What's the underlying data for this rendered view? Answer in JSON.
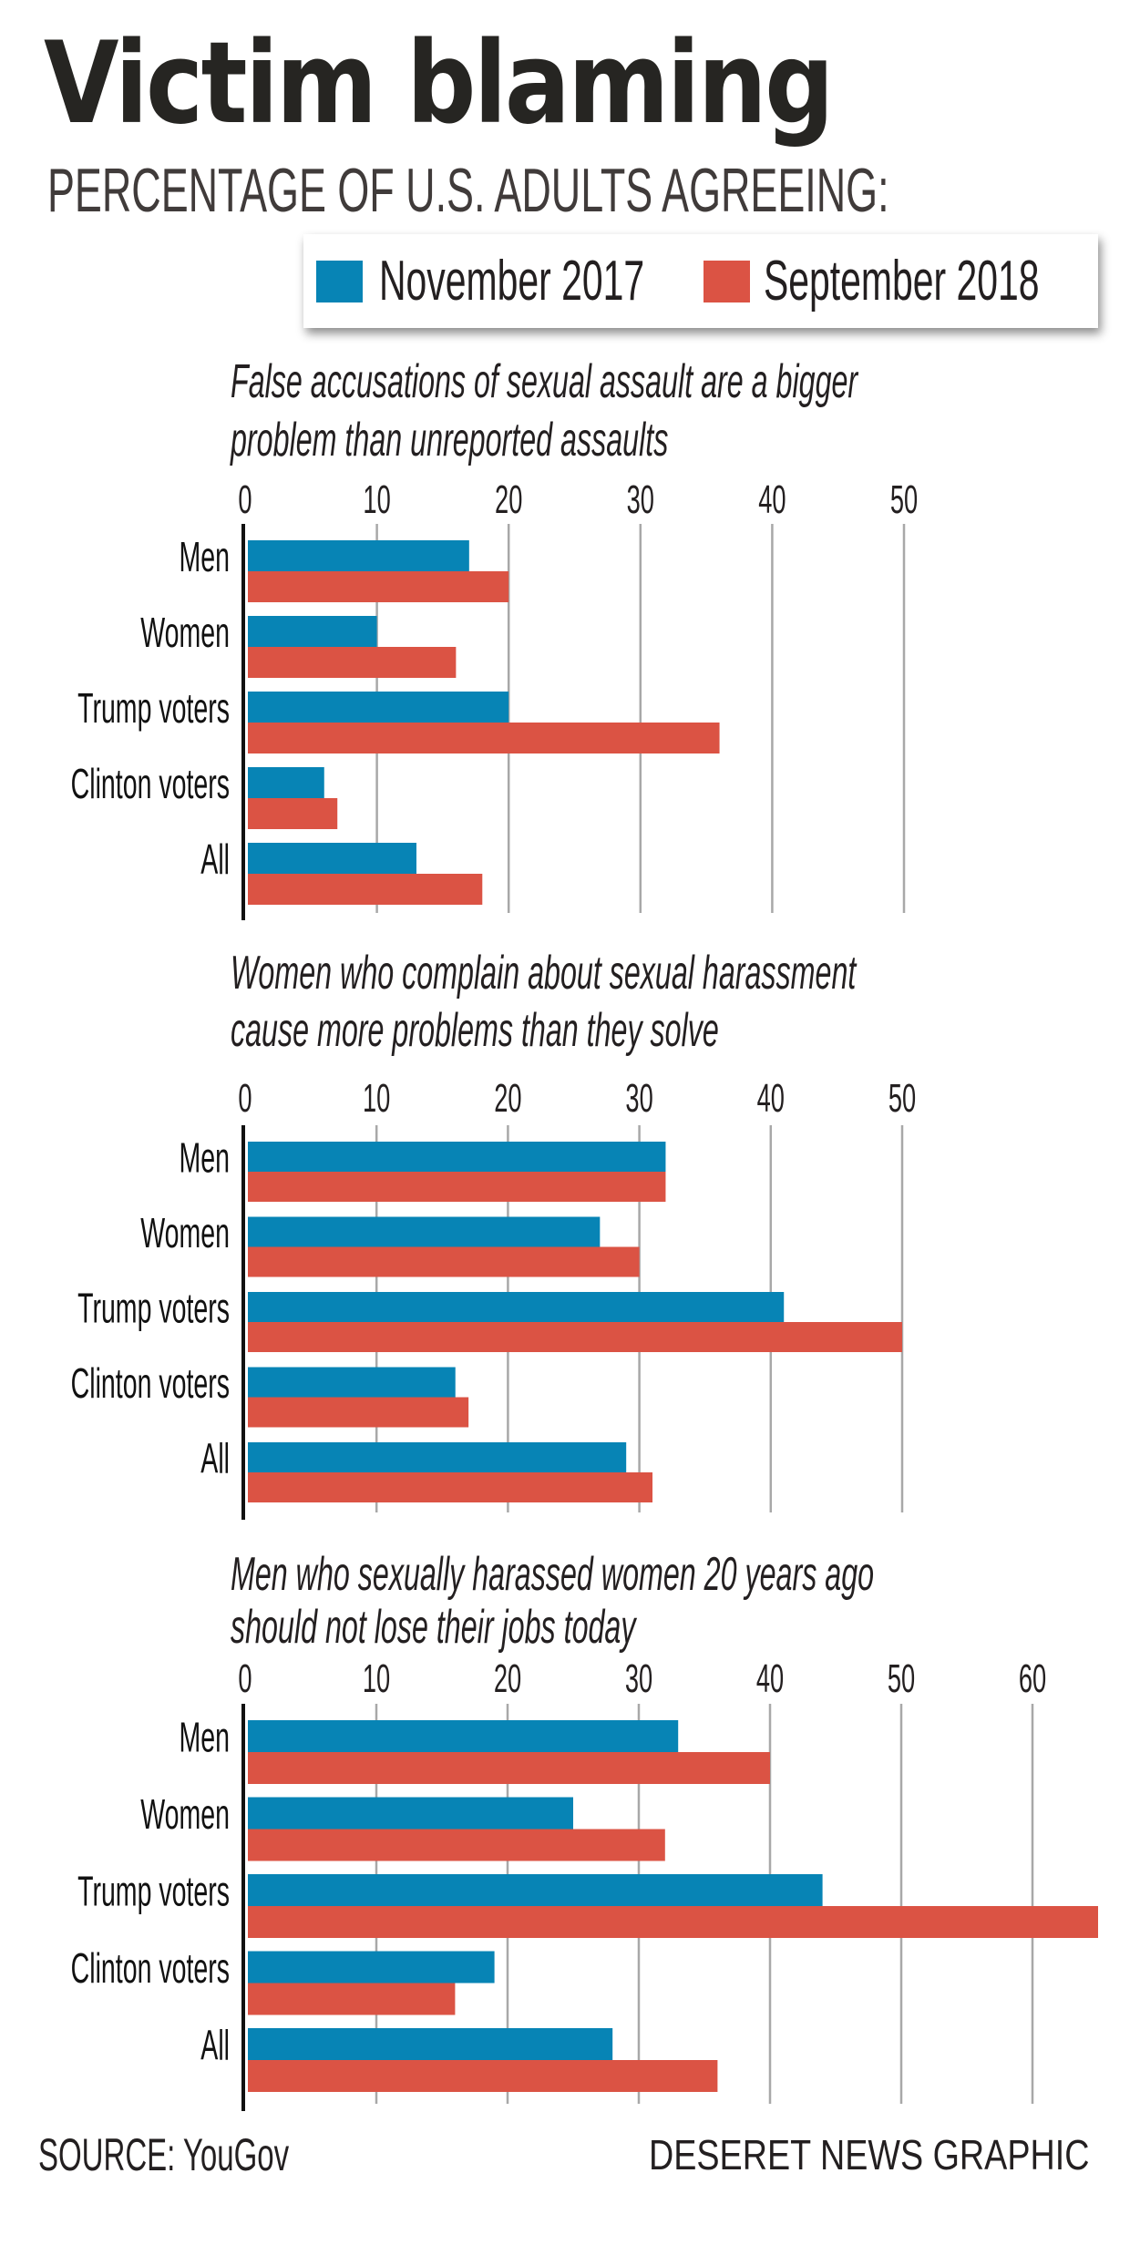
{
  "header": {
    "title": "Victim blaming",
    "subtitle": "PERCENTAGE OF U.S. ADULTS AGREEING:"
  },
  "legend": {
    "items": [
      {
        "label": "November 2017",
        "color": "#0784b5"
      },
      {
        "label": "September 2018",
        "color": "#db5344"
      }
    ]
  },
  "chart_data": [
    {
      "type": "bar",
      "orientation": "horizontal",
      "title_lines": [
        "False accusations of sexual assault are a bigger",
        "problem than unreported assaults"
      ],
      "title": "False accusations of sexual assault are a bigger problem than unreported assaults",
      "xlabel": "",
      "ylabel": "",
      "categories": [
        "Men",
        "Women",
        "Trump voters",
        "Clinton voters",
        "All"
      ],
      "xticks": [
        0,
        10,
        20,
        30,
        40,
        50
      ],
      "xlim": [
        0,
        50
      ],
      "grid": true,
      "legend": "top-right",
      "series": [
        {
          "name": "November 2017",
          "color": "#0784b5",
          "values": [
            17,
            10,
            20,
            6,
            13
          ]
        },
        {
          "name": "September 2018",
          "color": "#db5344",
          "values": [
            20,
            16,
            36,
            7,
            18
          ]
        }
      ]
    },
    {
      "type": "bar",
      "orientation": "horizontal",
      "title_lines": [
        "Women who complain about sexual harassment",
        "cause more problems than they solve"
      ],
      "title": "Women who complain about sexual harassment cause more problems than they solve",
      "xlabel": "",
      "ylabel": "",
      "categories": [
        "Men",
        "Women",
        "Trump voters",
        "Clinton voters",
        "All"
      ],
      "xticks": [
        0,
        10,
        20,
        30,
        40,
        50
      ],
      "xlim": [
        0,
        50
      ],
      "grid": true,
      "legend": "top-right",
      "series": [
        {
          "name": "November 2017",
          "color": "#0784b5",
          "values": [
            32,
            27,
            41,
            16,
            29
          ]
        },
        {
          "name": "September 2018",
          "color": "#db5344",
          "values": [
            32,
            30,
            50,
            17,
            31
          ]
        }
      ]
    },
    {
      "type": "bar",
      "orientation": "horizontal",
      "title_lines": [
        "Men who sexually harassed women 20 years ago",
        "should not lose their jobs today"
      ],
      "title": "Men who sexually harassed women 20 years ago should not lose their jobs today",
      "xlabel": "",
      "ylabel": "",
      "categories": [
        "Men",
        "Women",
        "Trump voters",
        "Clinton voters",
        "All"
      ],
      "xticks": [
        0,
        10,
        20,
        30,
        40,
        50,
        60
      ],
      "xlim": [
        0,
        65
      ],
      "grid": true,
      "legend": "top-right",
      "series": [
        {
          "name": "November 2017",
          "color": "#0784b5",
          "values": [
            33,
            25,
            44,
            19,
            28
          ]
        },
        {
          "name": "September 2018",
          "color": "#db5344",
          "values": [
            40,
            32,
            65,
            16,
            36
          ]
        }
      ]
    }
  ],
  "footer": {
    "source": "SOURCE: YouGov",
    "credit": "DESERET NEWS GRAPHIC"
  },
  "style": {
    "gridline_color": "#a8a8a8",
    "axis_color": "#111111"
  }
}
